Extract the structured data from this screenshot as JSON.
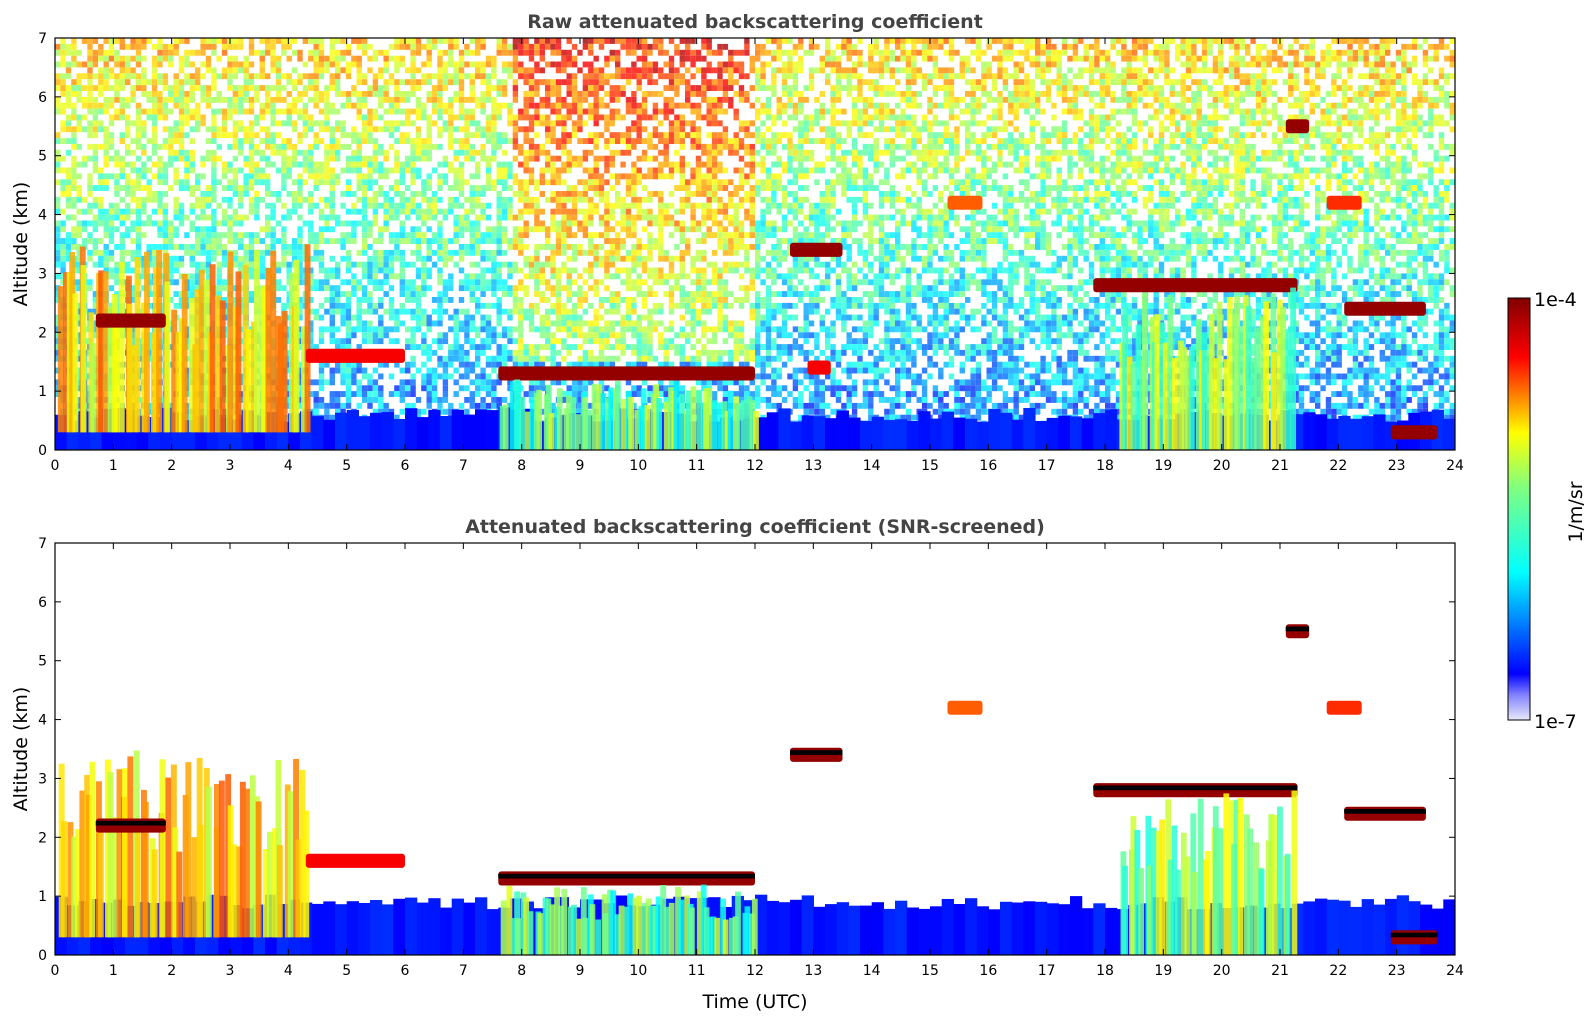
{
  "chart_data": [
    {
      "type": "heatmap",
      "title": "Raw attenuated backscattering coefficient",
      "xlabel": "",
      "ylabel": "Altitude (km)",
      "xlim": [
        0,
        24
      ],
      "ylim": [
        0,
        7
      ],
      "x_ticks": [
        "0",
        "1",
        "2",
        "3",
        "4",
        "5",
        "6",
        "7",
        "8",
        "9",
        "10",
        "11",
        "12",
        "13",
        "14",
        "15",
        "16",
        "17",
        "18",
        "19",
        "20",
        "21",
        "22",
        "23",
        "24"
      ],
      "y_ticks": [
        "0",
        "1",
        "2",
        "3",
        "4",
        "5",
        "6",
        "7"
      ],
      "background_noise": true,
      "boundary_layer_top_km": 0.6,
      "features": [
        {
          "t0": 0.0,
          "t1": 4.3,
          "z_bottom": 0.3,
          "z_top": 3.5,
          "kind": "aerosol/precip",
          "level": 0.75
        },
        {
          "t0": 0.7,
          "t1": 1.9,
          "z": 2.2,
          "kind": "cloud",
          "level": 1.0
        },
        {
          "t0": 4.3,
          "t1": 6.0,
          "z": 1.6,
          "kind": "cloud",
          "level": 0.9
        },
        {
          "t0": 7.6,
          "t1": 12.0,
          "z": 1.3,
          "kind": "cloud",
          "level": 1.0
        },
        {
          "t0": 7.6,
          "t1": 12.0,
          "z_bottom": 0.0,
          "z_top": 1.2,
          "kind": "virga",
          "level": 0.55
        },
        {
          "t0": 12.6,
          "t1": 13.5,
          "z": 3.4,
          "kind": "cloud",
          "level": 1.0
        },
        {
          "t0": 12.9,
          "t1": 13.3,
          "z": 1.4,
          "kind": "cloud",
          "level": 0.9
        },
        {
          "t0": 15.3,
          "t1": 15.9,
          "z": 4.2,
          "kind": "cloud",
          "level": 0.8
        },
        {
          "t0": 17.8,
          "t1": 21.3,
          "z": 2.8,
          "kind": "cloud",
          "level": 1.0
        },
        {
          "t0": 18.2,
          "t1": 21.2,
          "z_bottom": 0.0,
          "z_top": 2.8,
          "kind": "virga",
          "level": 0.6
        },
        {
          "t0": 21.1,
          "t1": 21.5,
          "z": 5.5,
          "kind": "cloud",
          "level": 1.0
        },
        {
          "t0": 21.8,
          "t1": 22.4,
          "z": 4.2,
          "kind": "cloud",
          "level": 0.85
        },
        {
          "t0": 22.1,
          "t1": 23.5,
          "z": 2.4,
          "kind": "cloud",
          "level": 1.0
        },
        {
          "t0": 22.9,
          "t1": 23.7,
          "z": 0.3,
          "kind": "cloud",
          "level": 1.0
        }
      ]
    },
    {
      "type": "heatmap",
      "title": "Attenuated backscattering coefficient (SNR-screened)",
      "xlabel": "Time (UTC)",
      "ylabel": "Altitude (km)",
      "xlim": [
        0,
        24
      ],
      "ylim": [
        0,
        7
      ],
      "x_ticks": [
        "0",
        "1",
        "2",
        "3",
        "4",
        "5",
        "6",
        "7",
        "8",
        "9",
        "10",
        "11",
        "12",
        "13",
        "14",
        "15",
        "16",
        "17",
        "18",
        "19",
        "20",
        "21",
        "22",
        "23",
        "24"
      ],
      "y_ticks": [
        "0",
        "1",
        "2",
        "3",
        "4",
        "5",
        "6",
        "7"
      ],
      "background_noise": false,
      "boundary_layer_top_km": 0.9,
      "features": [
        {
          "t0": 0.0,
          "t1": 4.3,
          "z_bottom": 0.3,
          "z_top": 3.5,
          "kind": "aerosol/precip",
          "level": 0.75
        },
        {
          "t0": 0.7,
          "t1": 1.9,
          "z": 2.2,
          "kind": "cloud",
          "level": 1.0
        },
        {
          "t0": 4.3,
          "t1": 6.0,
          "z": 1.6,
          "kind": "cloud",
          "level": 0.9
        },
        {
          "t0": 7.6,
          "t1": 12.0,
          "z": 1.3,
          "kind": "cloud",
          "level": 1.0
        },
        {
          "t0": 7.6,
          "t1": 12.0,
          "z_bottom": 0.0,
          "z_top": 1.2,
          "kind": "virga",
          "level": 0.55
        },
        {
          "t0": 12.6,
          "t1": 13.5,
          "z": 3.4,
          "kind": "cloud",
          "level": 1.0
        },
        {
          "t0": 15.3,
          "t1": 15.9,
          "z": 4.2,
          "kind": "cloud",
          "level": 0.8
        },
        {
          "t0": 17.8,
          "t1": 21.3,
          "z": 2.8,
          "kind": "cloud",
          "level": 1.0
        },
        {
          "t0": 18.2,
          "t1": 21.2,
          "z_bottom": 0.0,
          "z_top": 2.8,
          "kind": "virga",
          "level": 0.6
        },
        {
          "t0": 21.1,
          "t1": 21.5,
          "z": 5.5,
          "kind": "cloud",
          "level": 1.0
        },
        {
          "t0": 21.8,
          "t1": 22.4,
          "z": 4.2,
          "kind": "cloud",
          "level": 0.85
        },
        {
          "t0": 22.1,
          "t1": 23.5,
          "z": 2.4,
          "kind": "cloud",
          "level": 1.0
        },
        {
          "t0": 22.9,
          "t1": 23.7,
          "z": 0.3,
          "kind": "cloud",
          "level": 1.0
        }
      ]
    }
  ],
  "colorbar": {
    "label": "1/m/sr",
    "max_label": "1e-4",
    "min_label": "1e-7",
    "scale": "log",
    "colormap": "jet"
  },
  "colors": {
    "title": "#444444",
    "cloud_top": "#000000"
  }
}
